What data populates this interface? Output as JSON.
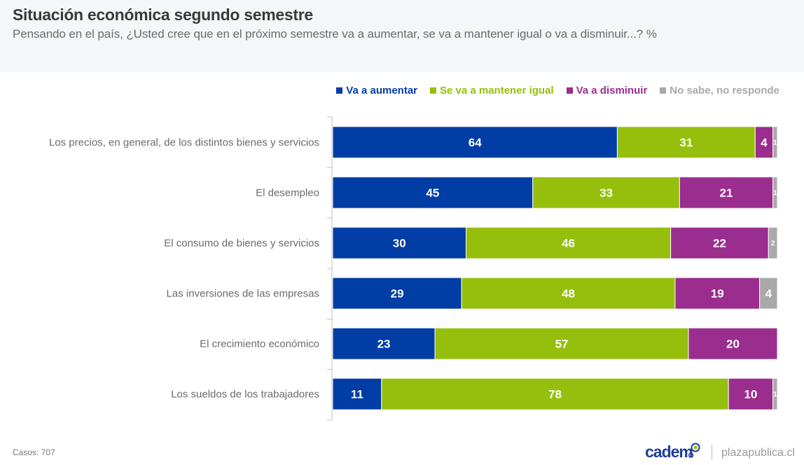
{
  "header": {
    "title": "Situación económica segundo semestre",
    "subtitle": "Pensando en el país, ¿Usted cree que en el próximo semestre va a aumentar, se va a mantener igual o va a disminuir...? %"
  },
  "footer": {
    "cases": "Casos: 707",
    "brand": "cadem",
    "site": "plazapublica.cl"
  },
  "chart_data": {
    "type": "bar",
    "orientation": "horizontal",
    "stacked": true,
    "title": "Situación económica segundo semestre",
    "xlabel": "",
    "ylabel": "",
    "xlim": [
      0,
      100
    ],
    "grid": false,
    "legend_position": "top-right",
    "categories": [
      "Los precios, en general, de los distintos bienes y servicios",
      "El desempleo",
      "El consumo de bienes y servicios",
      "Las inversiones de las empresas",
      "El crecimiento económico",
      "Los sueldos de los trabajadores"
    ],
    "series": [
      {
        "name": "Va a aumentar",
        "color": "#003da5",
        "values": [
          64,
          45,
          30,
          29,
          23,
          11
        ]
      },
      {
        "name": "Se va a mantener igual",
        "color": "#96be0d",
        "values": [
          31,
          33,
          46,
          48,
          57,
          78
        ]
      },
      {
        "name": "Va a disminuir",
        "color": "#9b2d8e",
        "values": [
          4,
          21,
          22,
          19,
          20,
          10
        ]
      },
      {
        "name": "No sabe, no responde",
        "color": "#a9a9a9",
        "values": [
          1,
          1,
          2,
          4,
          0,
          1
        ]
      }
    ]
  }
}
